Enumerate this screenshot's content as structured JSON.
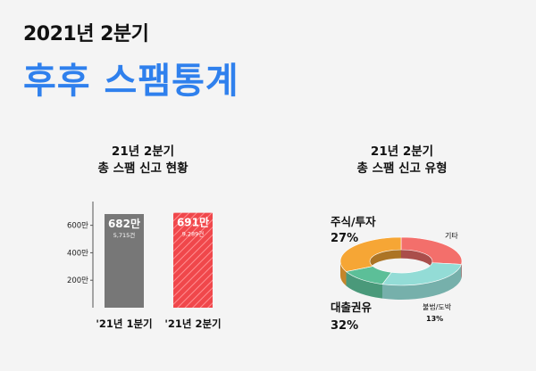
{
  "header": {
    "subtitle": "2021년 2분기",
    "title": "후후 스팸통계"
  },
  "colors": {
    "title_blue": "#2f80ed",
    "bar_q1": "#777777",
    "bar_q2": "#f0474b",
    "stocks": "#f36f6b",
    "other": "#93dcd6",
    "gambling": "#5cbf98",
    "loans": "#f6a635"
  },
  "chart_data": [
    {
      "type": "bar",
      "title_line1": "21년 2분기",
      "title_line2": "총 스팸 신고 현황",
      "categories": [
        "'21년 1분기",
        "'21년 2분기"
      ],
      "values": [
        682,
        691
      ],
      "value_labels": [
        "682만",
        "691만"
      ],
      "sub_labels": [
        "5,715건",
        "9,289건"
      ],
      "yticks": [
        "200만",
        "400만",
        "600만"
      ],
      "ytick_values": [
        200,
        400,
        600
      ],
      "ylim": [
        0,
        760
      ]
    },
    {
      "type": "pie",
      "title_line1": "21년 2분기",
      "title_line2": "총 스팸 신고 유형",
      "slices": [
        {
          "label": "주식/투자",
          "value": 27,
          "pct_label": "27%"
        },
        {
          "label": "기타",
          "value": 28,
          "pct_label": ""
        },
        {
          "label": "불법/도박",
          "value": 13,
          "pct_label": "13%"
        },
        {
          "label": "대출권유",
          "value": 32,
          "pct_label": "32%"
        }
      ]
    }
  ]
}
